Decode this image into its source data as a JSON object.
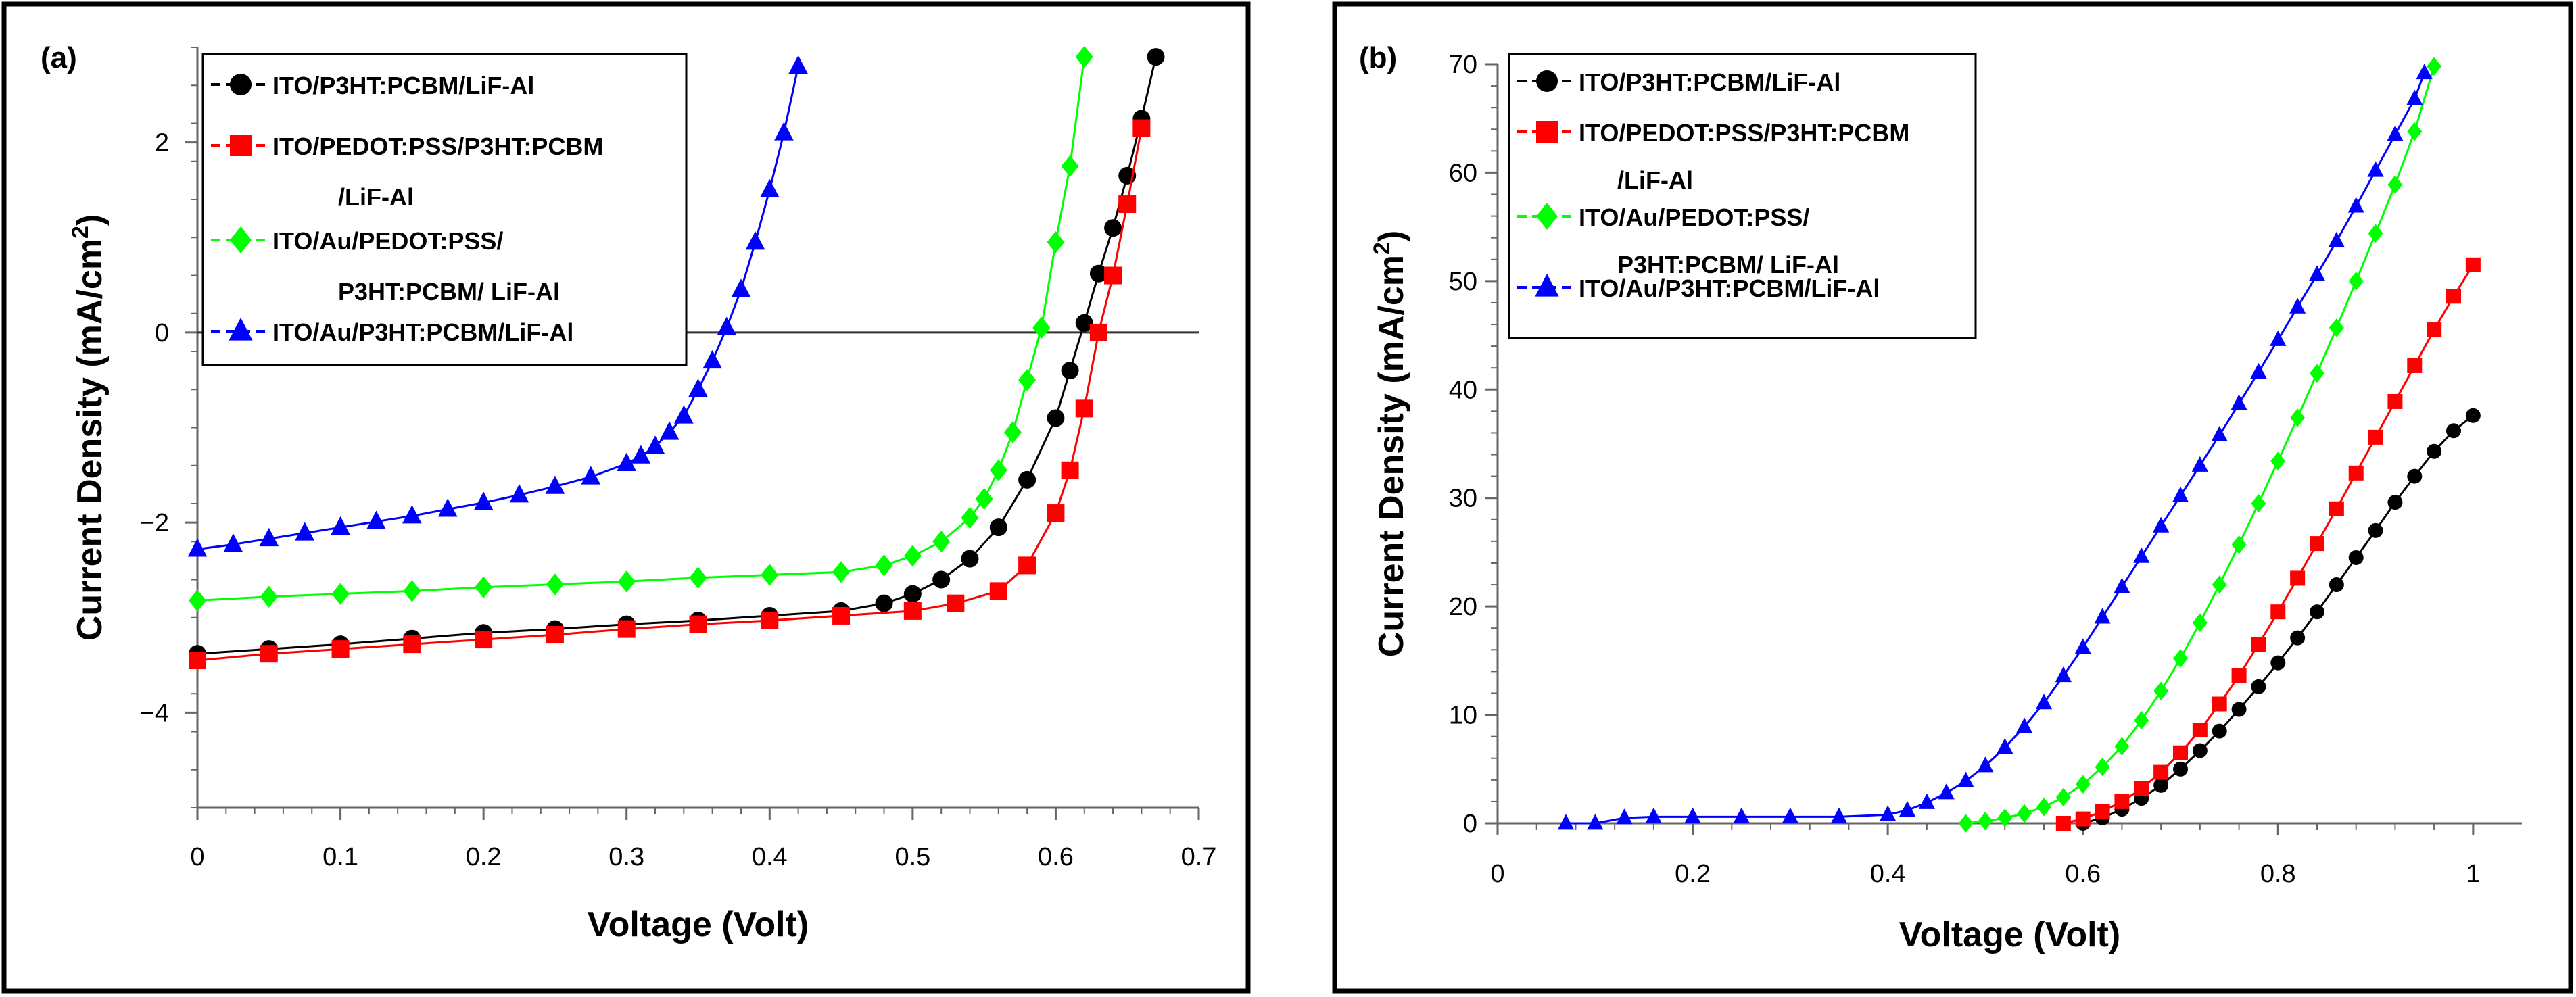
{
  "chart_data": [
    {
      "type": "line",
      "panel_label": "(a)",
      "xlabel": "Voltage (Volt)",
      "ylabel_main": "Current Density (mA/cm",
      "ylabel_sup": "2",
      "ylabel_end": ")",
      "xlim": [
        0,
        0.7
      ],
      "ylim": [
        -5,
        3
      ],
      "xticks": [
        0,
        0.1,
        0.2,
        0.3,
        0.4,
        0.5,
        0.6,
        0.7
      ],
      "xtick_labels": [
        "0",
        "0.1",
        "0.2",
        "0.3",
        "0.4",
        "0.5",
        "0.6",
        "0.7"
      ],
      "yticks": [
        -4,
        -2,
        0,
        2
      ],
      "ytick_labels": [
        "−4",
        "−2",
        "0",
        "2"
      ],
      "zero_line": true,
      "legend_position": "top-left",
      "series": [
        {
          "name": "ITO/P3HT:PCBM/LiF-Al",
          "legend_lines": [
            "ITO/P3HT:PCBM/LiF-Al"
          ],
          "color": "#000000",
          "marker": "circle",
          "x": [
            0,
            0.05,
            0.1,
            0.15,
            0.2,
            0.25,
            0.3,
            0.35,
            0.4,
            0.45,
            0.48,
            0.5,
            0.52,
            0.54,
            0.56,
            0.58,
            0.6,
            0.61,
            0.62,
            0.63,
            0.64,
            0.65,
            0.66,
            0.67
          ],
          "y": [
            -3.38,
            -3.33,
            -3.28,
            -3.22,
            -3.16,
            -3.12,
            -3.07,
            -3.03,
            -2.98,
            -2.93,
            -2.85,
            -2.75,
            -2.6,
            -2.38,
            -2.05,
            -1.55,
            -0.9,
            -0.4,
            0.1,
            0.62,
            1.1,
            1.65,
            2.25,
            2.9
          ]
        },
        {
          "name": "ITO/PEDOT:PSS/P3HT:PCBM/LiF-Al",
          "legend_lines": [
            "ITO/PEDOT:PSS/P3HT:PCBM",
            "/LiF-Al"
          ],
          "color": "#ff0000",
          "marker": "square",
          "x": [
            0,
            0.05,
            0.1,
            0.15,
            0.2,
            0.25,
            0.3,
            0.35,
            0.4,
            0.45,
            0.5,
            0.53,
            0.56,
            0.58,
            0.6,
            0.61,
            0.62,
            0.63,
            0.64,
            0.65,
            0.66
          ],
          "y": [
            -3.45,
            -3.38,
            -3.33,
            -3.28,
            -3.23,
            -3.18,
            -3.12,
            -3.07,
            -3.03,
            -2.98,
            -2.93,
            -2.85,
            -2.72,
            -2.45,
            -1.9,
            -1.45,
            -0.8,
            0,
            0.6,
            1.35,
            2.15
          ]
        },
        {
          "name": "ITO/Au/PEDOT:PSS/P3HT:PCBM/LiF-Al",
          "legend_lines": [
            "ITO/Au/PEDOT:PSS/",
            "P3HT:PCBM/ LiF-Al"
          ],
          "color": "#00ff00",
          "marker": "diamond",
          "x": [
            0,
            0.05,
            0.1,
            0.15,
            0.2,
            0.25,
            0.3,
            0.35,
            0.4,
            0.45,
            0.48,
            0.5,
            0.52,
            0.54,
            0.55,
            0.56,
            0.57,
            0.58,
            0.59,
            0.6,
            0.61,
            0.62
          ],
          "y": [
            -2.82,
            -2.78,
            -2.75,
            -2.72,
            -2.68,
            -2.65,
            -2.62,
            -2.58,
            -2.55,
            -2.52,
            -2.45,
            -2.35,
            -2.2,
            -1.95,
            -1.75,
            -1.45,
            -1.05,
            -0.5,
            0.05,
            0.95,
            1.75,
            2.9
          ]
        },
        {
          "name": "ITO/Au/P3HT:PCBM/LiF-Al",
          "legend_lines": [
            "ITO/Au/P3HT:PCBM/LiF-Al"
          ],
          "color": "#0000ff",
          "marker": "triangle",
          "x": [
            0,
            0.025,
            0.05,
            0.075,
            0.1,
            0.125,
            0.15,
            0.175,
            0.2,
            0.225,
            0.25,
            0.275,
            0.3,
            0.31,
            0.32,
            0.33,
            0.34,
            0.35,
            0.36,
            0.37,
            0.38,
            0.39,
            0.4,
            0.41,
            0.42
          ],
          "y": [
            -2.28,
            -2.23,
            -2.17,
            -2.11,
            -2.05,
            -1.99,
            -1.93,
            -1.86,
            -1.79,
            -1.71,
            -1.62,
            -1.52,
            -1.38,
            -1.3,
            -1.2,
            -1.05,
            -0.88,
            -0.6,
            -0.3,
            0.05,
            0.45,
            0.95,
            1.5,
            2.1,
            2.8
          ]
        }
      ]
    },
    {
      "type": "line",
      "panel_label": "(b)",
      "xlabel": "Voltage (Volt)",
      "ylabel_main": "Current Density (mA/cm",
      "ylabel_sup": "2",
      "ylabel_end": ")",
      "xlim": [
        0,
        1.05
      ],
      "ylim": [
        0,
        70
      ],
      "xticks": [
        0,
        0.2,
        0.4,
        0.6,
        0.8,
        1
      ],
      "xtick_labels": [
        "0",
        "0.2",
        "0.4",
        "0.6",
        "0.8",
        "1"
      ],
      "yticks": [
        0,
        10,
        20,
        30,
        40,
        50,
        60,
        70
      ],
      "ytick_labels": [
        "0",
        "10",
        "20",
        "30",
        "40",
        "50",
        "60",
        "70"
      ],
      "zero_line": false,
      "legend_position": "top-left",
      "series": [
        {
          "name": "ITO/P3HT:PCBM/LiF-Al",
          "legend_lines": [
            "ITO/P3HT:PCBM/LiF-Al"
          ],
          "color": "#000000",
          "marker": "circle",
          "x": [
            0.6,
            0.62,
            0.64,
            0.66,
            0.68,
            0.7,
            0.72,
            0.74,
            0.76,
            0.78,
            0.8,
            0.82,
            0.84,
            0.86,
            0.88,
            0.9,
            0.92,
            0.94,
            0.96,
            0.98,
            1.0
          ],
          "y": [
            0,
            0.5,
            1.3,
            2.3,
            3.5,
            5,
            6.7,
            8.5,
            10.5,
            12.6,
            14.8,
            17.1,
            19.5,
            22,
            24.5,
            27,
            29.6,
            32,
            34.3,
            36.2,
            37.6
          ]
        },
        {
          "name": "ITO/PEDOT:PSS/P3HT:PCBM/LiF-Al",
          "legend_lines": [
            "ITO/PEDOT:PSS/P3HT:PCBM",
            "/LiF-Al"
          ],
          "color": "#ff0000",
          "marker": "square",
          "x": [
            0.58,
            0.6,
            0.62,
            0.64,
            0.66,
            0.68,
            0.7,
            0.72,
            0.74,
            0.76,
            0.78,
            0.8,
            0.82,
            0.84,
            0.86,
            0.88,
            0.9,
            0.92,
            0.94,
            0.96,
            0.98,
            1.0
          ],
          "y": [
            0,
            0.4,
            1.1,
            2,
            3.2,
            4.7,
            6.5,
            8.6,
            11,
            13.6,
            16.5,
            19.5,
            22.6,
            25.8,
            29,
            32.3,
            35.6,
            38.9,
            42.2,
            45.5,
            48.6,
            51.5
          ]
        },
        {
          "name": "ITO/Au/PEDOT:PSS/P3HT:PCBM/LiF-Al",
          "legend_lines": [
            "ITO/Au/PEDOT:PSS/",
            "P3HT:PCBM/ LiF-Al"
          ],
          "color": "#00ff00",
          "marker": "diamond",
          "x": [
            0.48,
            0.5,
            0.52,
            0.54,
            0.56,
            0.58,
            0.6,
            0.62,
            0.64,
            0.66,
            0.68,
            0.7,
            0.72,
            0.74,
            0.76,
            0.78,
            0.8,
            0.82,
            0.84,
            0.86,
            0.88,
            0.9,
            0.92,
            0.94,
            0.96
          ],
          "y": [
            0,
            0.2,
            0.5,
            0.9,
            1.5,
            2.4,
            3.6,
            5.2,
            7.1,
            9.5,
            12.2,
            15.2,
            18.5,
            22,
            25.7,
            29.5,
            33.4,
            37.4,
            41.5,
            45.7,
            50,
            54.4,
            58.9,
            63.8,
            69.8
          ]
        },
        {
          "name": "ITO/Au/P3HT:PCBM/LiF-Al",
          "legend_lines": [
            "ITO/Au/P3HT:PCBM/LiF-Al"
          ],
          "color": "#0000ff",
          "marker": "triangle",
          "x": [
            0.07,
            0.1,
            0.13,
            0.16,
            0.2,
            0.25,
            0.3,
            0.35,
            0.4,
            0.42,
            0.44,
            0.46,
            0.48,
            0.5,
            0.52,
            0.54,
            0.56,
            0.58,
            0.6,
            0.62,
            0.64,
            0.66,
            0.68,
            0.7,
            0.72,
            0.74,
            0.76,
            0.78,
            0.8,
            0.82,
            0.84,
            0.86,
            0.88,
            0.9,
            0.92,
            0.94,
            0.95
          ],
          "y": [
            0,
            0,
            0.5,
            0.6,
            0.6,
            0.6,
            0.6,
            0.6,
            0.8,
            1.2,
            1.9,
            2.8,
            3.9,
            5.3,
            7,
            8.9,
            11.1,
            13.6,
            16.2,
            19,
            21.8,
            24.6,
            27.4,
            30.2,
            33,
            35.8,
            38.7,
            41.6,
            44.6,
            47.6,
            50.6,
            53.7,
            56.9,
            60.2,
            63.5,
            66.8,
            69.2
          ]
        }
      ]
    }
  ]
}
